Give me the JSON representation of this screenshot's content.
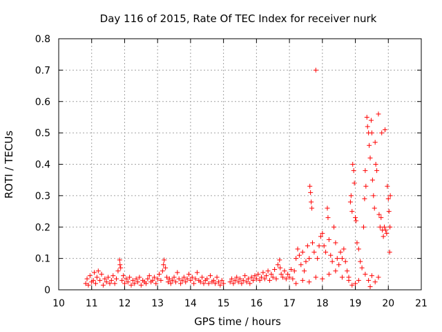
{
  "chart_data": {
    "type": "scatter",
    "title": "Day 116 of 2015, Rate Of TEC Index for receiver nurk",
    "xlabel": "GPS time / hours",
    "ylabel": "ROTI / TECUs",
    "xlim": [
      10,
      21
    ],
    "ylim": [
      0,
      0.8
    ],
    "grid": true,
    "marker": "plus",
    "color": "#ff0000",
    "xticks": [
      "10",
      "11",
      "12",
      "13",
      "14",
      "15",
      "16",
      "17",
      "18",
      "19",
      "20",
      "21"
    ],
    "yticks": [
      "0",
      "0.1",
      "0.2",
      "0.3",
      "0.4",
      "0.5",
      "0.6",
      "0.7",
      "0.8"
    ],
    "series": [
      {
        "name": "ROTI",
        "points": [
          [
            10.82,
            0.02
          ],
          [
            10.86,
            0.035
          ],
          [
            10.9,
            0.015
          ],
          [
            10.95,
            0.045
          ],
          [
            11.0,
            0.025
          ],
          [
            11.05,
            0.03
          ],
          [
            11.08,
            0.055
          ],
          [
            11.12,
            0.02
          ],
          [
            11.16,
            0.04
          ],
          [
            11.2,
            0.06
          ],
          [
            11.25,
            0.03
          ],
          [
            11.3,
            0.05
          ],
          [
            11.35,
            0.015
          ],
          [
            11.4,
            0.035
          ],
          [
            11.45,
            0.025
          ],
          [
            11.5,
            0.04
          ],
          [
            11.55,
            0.02
          ],
          [
            11.6,
            0.03
          ],
          [
            11.65,
            0.045
          ],
          [
            11.7,
            0.02
          ],
          [
            11.75,
            0.035
          ],
          [
            11.8,
            0.06
          ],
          [
            11.85,
            0.095
          ],
          [
            11.86,
            0.08
          ],
          [
            11.88,
            0.07
          ],
          [
            11.92,
            0.03
          ],
          [
            11.96,
            0.045
          ],
          [
            12.0,
            0.02
          ],
          [
            12.05,
            0.035
          ],
          [
            12.1,
            0.025
          ],
          [
            12.15,
            0.04
          ],
          [
            12.2,
            0.015
          ],
          [
            12.25,
            0.03
          ],
          [
            12.3,
            0.02
          ],
          [
            12.35,
            0.035
          ],
          [
            12.4,
            0.025
          ],
          [
            12.45,
            0.04
          ],
          [
            12.5,
            0.015
          ],
          [
            12.55,
            0.03
          ],
          [
            12.6,
            0.025
          ],
          [
            12.65,
            0.02
          ],
          [
            12.7,
            0.035
          ],
          [
            12.75,
            0.045
          ],
          [
            12.8,
            0.025
          ],
          [
            12.85,
            0.03
          ],
          [
            12.9,
            0.04
          ],
          [
            12.95,
            0.02
          ],
          [
            13.0,
            0.035
          ],
          [
            13.05,
            0.05
          ],
          [
            13.1,
            0.03
          ],
          [
            13.15,
            0.06
          ],
          [
            13.18,
            0.08
          ],
          [
            13.2,
            0.095
          ],
          [
            13.24,
            0.07
          ],
          [
            13.28,
            0.04
          ],
          [
            13.32,
            0.025
          ],
          [
            13.36,
            0.035
          ],
          [
            13.4,
            0.02
          ],
          [
            13.45,
            0.03
          ],
          [
            13.5,
            0.04
          ],
          [
            13.55,
            0.025
          ],
          [
            13.6,
            0.055
          ],
          [
            13.65,
            0.035
          ],
          [
            13.7,
            0.02
          ],
          [
            13.75,
            0.03
          ],
          [
            13.8,
            0.04
          ],
          [
            13.85,
            0.025
          ],
          [
            13.9,
            0.035
          ],
          [
            13.95,
            0.05
          ],
          [
            14.0,
            0.03
          ],
          [
            14.05,
            0.04
          ],
          [
            14.1,
            0.02
          ],
          [
            14.15,
            0.035
          ],
          [
            14.2,
            0.055
          ],
          [
            14.25,
            0.03
          ],
          [
            14.3,
            0.025
          ],
          [
            14.35,
            0.04
          ],
          [
            14.4,
            0.02
          ],
          [
            14.45,
            0.03
          ],
          [
            14.5,
            0.035
          ],
          [
            14.55,
            0.02
          ],
          [
            14.6,
            0.045
          ],
          [
            14.65,
            0.025
          ],
          [
            14.7,
            0.03
          ],
          [
            14.75,
            0.02
          ],
          [
            14.8,
            0.04
          ],
          [
            14.85,
            0.025
          ],
          [
            14.9,
            0.015
          ],
          [
            14.95,
            0.03
          ],
          [
            15.0,
            0.02
          ],
          [
            15.2,
            0.025
          ],
          [
            15.25,
            0.035
          ],
          [
            15.3,
            0.02
          ],
          [
            15.35,
            0.03
          ],
          [
            15.4,
            0.04
          ],
          [
            15.45,
            0.025
          ],
          [
            15.5,
            0.035
          ],
          [
            15.55,
            0.02
          ],
          [
            15.6,
            0.03
          ],
          [
            15.65,
            0.045
          ],
          [
            15.7,
            0.025
          ],
          [
            15.75,
            0.035
          ],
          [
            15.8,
            0.02
          ],
          [
            15.85,
            0.04
          ],
          [
            15.9,
            0.03
          ],
          [
            15.95,
            0.045
          ],
          [
            16.0,
            0.035
          ],
          [
            16.05,
            0.05
          ],
          [
            16.1,
            0.03
          ],
          [
            16.15,
            0.04
          ],
          [
            16.2,
            0.055
          ],
          [
            16.25,
            0.035
          ],
          [
            16.3,
            0.045
          ],
          [
            16.35,
            0.06
          ],
          [
            16.4,
            0.03
          ],
          [
            16.45,
            0.05
          ],
          [
            16.5,
            0.04
          ],
          [
            16.55,
            0.065
          ],
          [
            16.6,
            0.035
          ],
          [
            16.65,
            0.08
          ],
          [
            16.7,
            0.095
          ],
          [
            16.72,
            0.07
          ],
          [
            16.75,
            0.05
          ],
          [
            16.8,
            0.04
          ],
          [
            16.85,
            0.06
          ],
          [
            16.9,
            0.035
          ],
          [
            16.95,
            0.05
          ],
          [
            17.0,
            0.04
          ],
          [
            17.05,
            0.065
          ],
          [
            17.1,
            0.035
          ],
          [
            17.15,
            0.06
          ],
          [
            17.2,
            0.1
          ],
          [
            17.25,
            0.13
          ],
          [
            17.3,
            0.11
          ],
          [
            17.35,
            0.08
          ],
          [
            17.4,
            0.12
          ],
          [
            17.45,
            0.06
          ],
          [
            17.5,
            0.09
          ],
          [
            17.55,
            0.14
          ],
          [
            17.6,
            0.1
          ],
          [
            17.62,
            0.33
          ],
          [
            17.64,
            0.31
          ],
          [
            17.66,
            0.28
          ],
          [
            17.68,
            0.26
          ],
          [
            17.7,
            0.15
          ],
          [
            17.75,
            0.12
          ],
          [
            17.8,
            0.7
          ],
          [
            17.85,
            0.1
          ],
          [
            17.9,
            0.14
          ],
          [
            17.95,
            0.17
          ],
          [
            18.0,
            0.18
          ],
          [
            18.05,
            0.14
          ],
          [
            18.1,
            0.12
          ],
          [
            18.15,
            0.26
          ],
          [
            18.17,
            0.23
          ],
          [
            18.2,
            0.16
          ],
          [
            18.25,
            0.11
          ],
          [
            18.3,
            0.09
          ],
          [
            18.35,
            0.2
          ],
          [
            18.4,
            0.15
          ],
          [
            18.45,
            0.1
          ],
          [
            18.5,
            0.08
          ],
          [
            18.55,
            0.12
          ],
          [
            18.6,
            0.1
          ],
          [
            18.65,
            0.13
          ],
          [
            18.7,
            0.09
          ],
          [
            18.75,
            0.06
          ],
          [
            18.8,
            0.04
          ],
          [
            18.85,
            0.28
          ],
          [
            18.87,
            0.3
          ],
          [
            18.9,
            0.25
          ],
          [
            18.92,
            0.4
          ],
          [
            18.95,
            0.38
          ],
          [
            18.97,
            0.34
          ],
          [
            19.0,
            0.23
          ],
          [
            19.02,
            0.22
          ],
          [
            19.05,
            0.15
          ],
          [
            19.1,
            0.13
          ],
          [
            19.15,
            0.09
          ],
          [
            19.2,
            0.07
          ],
          [
            19.25,
            0.2
          ],
          [
            19.28,
            0.29
          ],
          [
            19.3,
            0.38
          ],
          [
            19.32,
            0.33
          ],
          [
            19.35,
            0.55
          ],
          [
            19.37,
            0.52
          ],
          [
            19.4,
            0.5
          ],
          [
            19.42,
            0.46
          ],
          [
            19.45,
            0.42
          ],
          [
            19.48,
            0.54
          ],
          [
            19.5,
            0.5
          ],
          [
            19.52,
            0.35
          ],
          [
            19.55,
            0.3
          ],
          [
            19.58,
            0.26
          ],
          [
            19.6,
            0.47
          ],
          [
            19.62,
            0.4
          ],
          [
            19.65,
            0.38
          ],
          [
            19.7,
            0.56
          ],
          [
            19.72,
            0.24
          ],
          [
            19.75,
            0.2
          ],
          [
            19.78,
            0.23
          ],
          [
            19.8,
            0.5
          ],
          [
            19.82,
            0.19
          ],
          [
            19.85,
            0.17
          ],
          [
            19.88,
            0.2
          ],
          [
            19.9,
            0.51
          ],
          [
            19.92,
            0.19
          ],
          [
            19.95,
            0.18
          ],
          [
            19.97,
            0.33
          ],
          [
            20.0,
            0.29
          ],
          [
            20.02,
            0.25
          ],
          [
            20.04,
            0.12
          ],
          [
            20.05,
            0.2
          ],
          [
            20.06,
            0.3
          ],
          [
            17.2,
            0.02
          ],
          [
            17.4,
            0.03
          ],
          [
            17.6,
            0.025
          ],
          [
            17.8,
            0.04
          ],
          [
            18.0,
            0.035
          ],
          [
            18.2,
            0.05
          ],
          [
            18.4,
            0.06
          ],
          [
            18.6,
            0.04
          ],
          [
            18.8,
            0.03
          ],
          [
            19.0,
            0.02
          ],
          [
            19.1,
            0.03
          ],
          [
            19.3,
            0.05
          ],
          [
            19.4,
            0.03
          ],
          [
            19.5,
            0.045
          ],
          [
            19.6,
            0.025
          ],
          [
            19.7,
            0.04
          ],
          [
            19.45,
            0.01
          ],
          [
            18.9,
            0.015
          ]
        ]
      }
    ]
  }
}
